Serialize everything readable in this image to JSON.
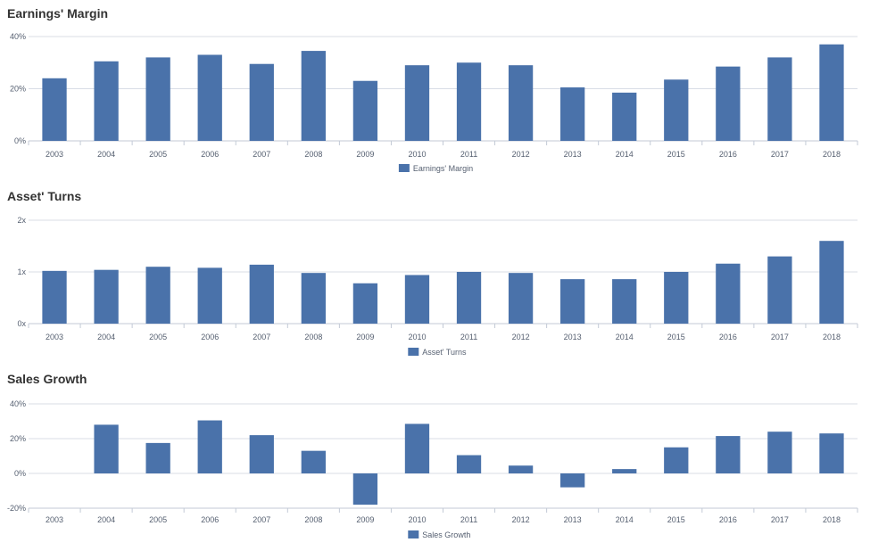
{
  "colors": {
    "bar": "#4a72aa",
    "grid": "#d8dde6",
    "axis": "#c3cad6",
    "text": "#555f70"
  },
  "chart_data": [
    {
      "type": "bar",
      "title": "Earnings' Margin",
      "categories": [
        "2003",
        "2004",
        "2005",
        "2006",
        "2007",
        "2008",
        "2009",
        "2010",
        "2011",
        "2012",
        "2013",
        "2014",
        "2015",
        "2016",
        "2017",
        "2018"
      ],
      "series": [
        {
          "name": "Earnings' Margin",
          "values": [
            24,
            30.5,
            32,
            33,
            29.5,
            34.5,
            23,
            29,
            30,
            29,
            20.5,
            18.5,
            23.5,
            28.5,
            32,
            37
          ]
        }
      ],
      "ylim": [
        0,
        40
      ],
      "yticks": [
        0,
        20,
        40
      ],
      "ytick_labels": [
        "0%",
        "20%",
        "40%"
      ],
      "legend": "bottom-center",
      "grid": true
    },
    {
      "type": "bar",
      "title": "Asset' Turns",
      "categories": [
        "2003",
        "2004",
        "2005",
        "2006",
        "2007",
        "2008",
        "2009",
        "2010",
        "2011",
        "2012",
        "2013",
        "2014",
        "2015",
        "2016",
        "2017",
        "2018"
      ],
      "series": [
        {
          "name": "Asset' Turns",
          "values": [
            1.02,
            1.04,
            1.1,
            1.08,
            1.14,
            0.98,
            0.78,
            0.94,
            1.0,
            0.98,
            0.86,
            0.86,
            1.0,
            1.16,
            1.3,
            1.6
          ]
        }
      ],
      "ylim": [
        0,
        2
      ],
      "yticks": [
        0,
        1,
        2
      ],
      "ytick_labels": [
        "0x",
        "1x",
        "2x"
      ],
      "legend": "bottom-center",
      "grid": true
    },
    {
      "type": "bar",
      "title": "Sales Growth",
      "categories": [
        "2003",
        "2004",
        "2005",
        "2006",
        "2007",
        "2008",
        "2009",
        "2010",
        "2011",
        "2012",
        "2013",
        "2014",
        "2015",
        "2016",
        "2017",
        "2018"
      ],
      "series": [
        {
          "name": "Sales Growth",
          "values": [
            0,
            28,
            17.5,
            30.5,
            22,
            13,
            -18,
            28.5,
            10.5,
            4.5,
            -8,
            2.5,
            15,
            21.5,
            24,
            23
          ]
        }
      ],
      "ylim": [
        -20,
        40
      ],
      "yticks": [
        -20,
        0,
        20,
        40
      ],
      "ytick_labels": [
        "-20%",
        "0%",
        "20%",
        "40%"
      ],
      "legend": "bottom-center",
      "grid": true
    }
  ]
}
